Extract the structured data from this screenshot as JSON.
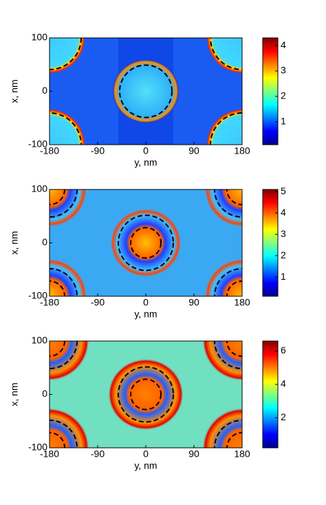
{
  "chart_data": [
    {
      "type": "heatmap",
      "xlabel": "y, nm",
      "ylabel": "x, nm",
      "xlim": [
        -180,
        180
      ],
      "xticks": [
        -180,
        -90,
        0,
        90,
        180
      ],
      "ylim": [
        -100,
        100
      ],
      "yticks": [
        -100,
        0,
        100
      ],
      "clim": [
        0.1,
        4.3
      ],
      "cticks": [
        1,
        2,
        3,
        4
      ]
    },
    {
      "type": "heatmap",
      "xlabel": "y, nm",
      "ylabel": "x, nm",
      "xlim": [
        -180,
        180
      ],
      "xticks": [
        -180,
        -90,
        0,
        90,
        180
      ],
      "ylim": [
        -100,
        100
      ],
      "yticks": [
        -100,
        0,
        100
      ],
      "clim": [
        0.1,
        5.1
      ],
      "cticks": [
        1,
        2,
        3,
        4,
        5
      ]
    },
    {
      "type": "heatmap",
      "xlabel": "y, nm",
      "ylabel": "x, nm",
      "xlim": [
        -180,
        180
      ],
      "xticks": [
        -180,
        -90,
        0,
        90,
        180
      ],
      "ylim": [
        -100,
        100
      ],
      "yticks": [
        -100,
        0,
        100
      ],
      "clim": [
        0.2,
        6.6
      ],
      "cticks": [
        2,
        4,
        6
      ]
    }
  ]
}
